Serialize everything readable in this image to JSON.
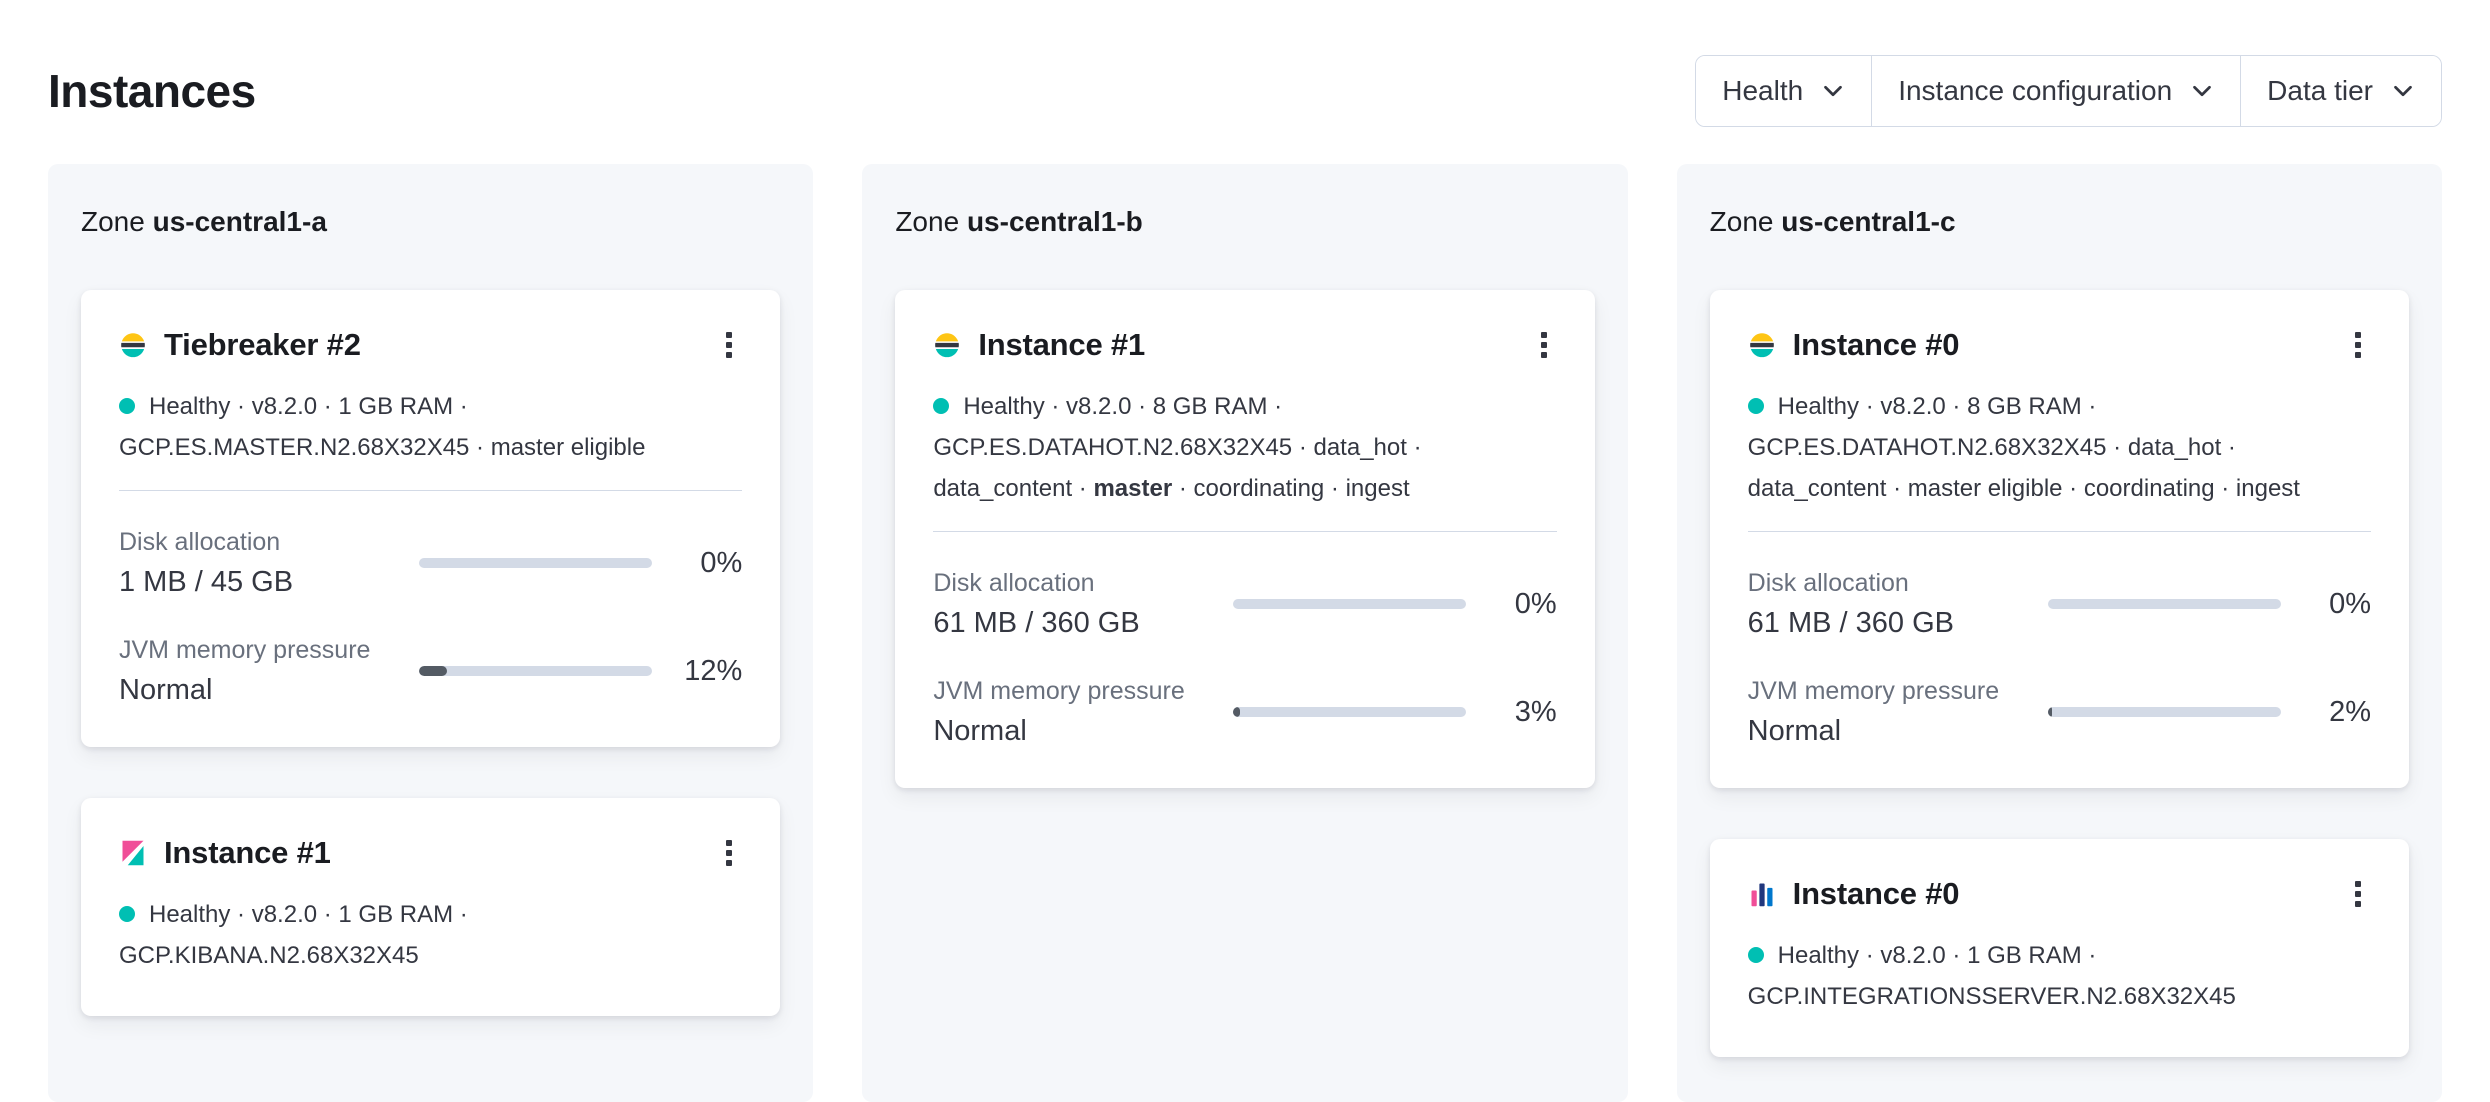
{
  "page": {
    "title": "Instances"
  },
  "filters": [
    {
      "label": "Health",
      "icon": "chevron-down-icon"
    },
    {
      "label": "Instance configuration",
      "icon": "chevron-down-icon"
    },
    {
      "label": "Data tier",
      "icon": "chevron-down-icon"
    }
  ],
  "icons": {
    "card_menu": "boxes-vertical-icon",
    "filter_chevron": "chevron-down-icon",
    "health_dot": "health-dot-icon"
  },
  "colors": {
    "healthy_dot": "#00BFB3",
    "bar_track": "#D3DAE6",
    "bar_fill": "#545B64",
    "panel_bg": "#F5F7FA"
  },
  "zones": [
    {
      "label": "Zone",
      "name": "us-central1-a",
      "cards": [
        {
          "icon": "elasticsearch-logo",
          "title": "Tiebreaker #2",
          "status": [
            {
              "t": "Healthy · v8.2.0 · 1 GB RAM · GCP.ES.MASTER.N2.68X32X45 · master eligible"
            }
          ],
          "stats": [
            {
              "label": "Disk allocation",
              "value": "1 MB / 45 GB",
              "percent": "0%",
              "fill": 0
            },
            {
              "label": "JVM memory pressure",
              "value": "Normal",
              "percent": "12%",
              "fill": 12
            }
          ]
        },
        {
          "icon": "kibana-logo",
          "title": "Instance #1",
          "status": [
            {
              "t": "Healthy · v8.2.0 · 1 GB RAM · GCP.KIBANA.N2.68X32X45"
            }
          ],
          "stats": []
        }
      ]
    },
    {
      "label": "Zone",
      "name": "us-central1-b",
      "cards": [
        {
          "icon": "elasticsearch-logo",
          "title": "Instance #1",
          "status": [
            {
              "t": "Healthy · v8.2.0 · 8 GB RAM · GCP.ES.DATAHOT.N2.68X32X45 · data_hot · data_content · "
            },
            {
              "t": "master",
              "b": true
            },
            {
              "t": " · coordinating · ingest"
            }
          ],
          "stats": [
            {
              "label": "Disk allocation",
              "value": "61 MB / 360 GB",
              "percent": "0%",
              "fill": 0
            },
            {
              "label": "JVM memory pressure",
              "value": "Normal",
              "percent": "3%",
              "fill": 3
            }
          ]
        }
      ]
    },
    {
      "label": "Zone",
      "name": "us-central1-c",
      "cards": [
        {
          "icon": "elasticsearch-logo",
          "title": "Instance #0",
          "status": [
            {
              "t": "Healthy · v8.2.0 · 8 GB RAM · GCP.ES.DATAHOT.N2.68X32X45 · data_hot · data_content · master eligible · coordinating · ingest"
            }
          ],
          "stats": [
            {
              "label": "Disk allocation",
              "value": "61 MB / 360 GB",
              "percent": "0%",
              "fill": 0
            },
            {
              "label": "JVM memory pressure",
              "value": "Normal",
              "percent": "2%",
              "fill": 2
            }
          ]
        },
        {
          "icon": "integrations-server-logo",
          "title": "Instance #0",
          "status": [
            {
              "t": "Healthy · v8.2.0 · 1 GB RAM · GCP.INTEGRATIONSSERVER.N2.68X32X45"
            }
          ],
          "stats": []
        }
      ]
    }
  ]
}
